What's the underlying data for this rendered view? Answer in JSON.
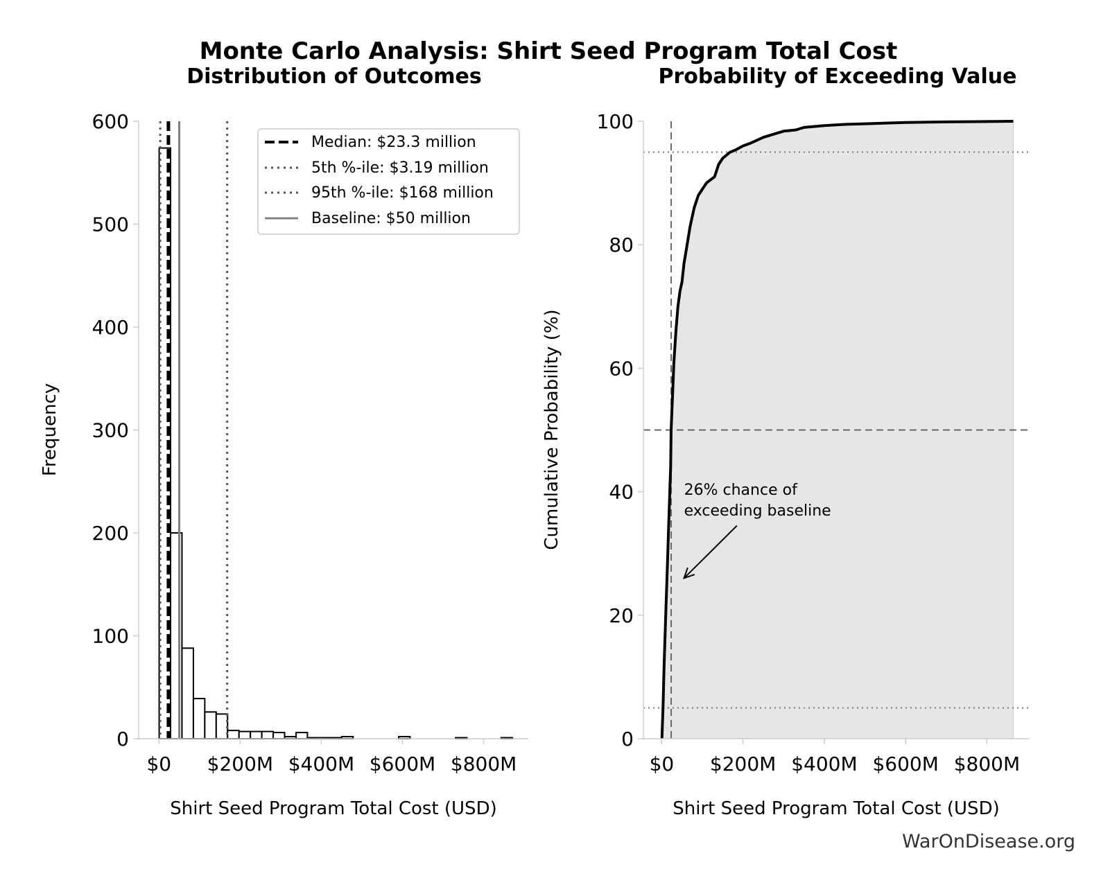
{
  "title": "Monte Carlo Analysis: Shirt Seed Program Total Cost",
  "watermark": "WarOnDisease.org",
  "chart_data": [
    {
      "type": "bar",
      "title": "Distribution of Outcomes",
      "xlabel": "Shirt Seed Program Total Cost (USD)",
      "ylabel": "Frequency",
      "xlim": [
        -50,
        910
      ],
      "ylim": [
        0,
        600
      ],
      "xticks": [
        {
          "value": 0,
          "label": "$0"
        },
        {
          "value": 200,
          "label": "$200M"
        },
        {
          "value": 400,
          "label": "$400M"
        },
        {
          "value": 600,
          "label": "$600M"
        },
        {
          "value": 800,
          "label": "$800M"
        }
      ],
      "yticks": [
        {
          "value": 0,
          "label": "0"
        },
        {
          "value": 100,
          "label": "100"
        },
        {
          "value": 200,
          "label": "200"
        },
        {
          "value": 300,
          "label": "300"
        },
        {
          "value": 400,
          "label": "400"
        },
        {
          "value": 500,
          "label": "500"
        },
        {
          "value": 600,
          "label": "600"
        }
      ],
      "bin_width": 28.1,
      "bins": [
        {
          "start": 0.5,
          "count": 574
        },
        {
          "start": 28.6,
          "count": 200
        },
        {
          "start": 56.7,
          "count": 88
        },
        {
          "start": 84.8,
          "count": 39
        },
        {
          "start": 112.9,
          "count": 26
        },
        {
          "start": 141.0,
          "count": 24
        },
        {
          "start": 169.1,
          "count": 8
        },
        {
          "start": 197.2,
          "count": 7
        },
        {
          "start": 225.3,
          "count": 7
        },
        {
          "start": 253.4,
          "count": 7
        },
        {
          "start": 281.5,
          "count": 6
        },
        {
          "start": 309.6,
          "count": 2
        },
        {
          "start": 337.7,
          "count": 6
        },
        {
          "start": 365.8,
          "count": 1
        },
        {
          "start": 393.9,
          "count": 1
        },
        {
          "start": 422.0,
          "count": 1
        },
        {
          "start": 450.1,
          "count": 2
        },
        {
          "start": 590.6,
          "count": 2
        },
        {
          "start": 730.6,
          "count": 1
        },
        {
          "start": 843.0,
          "count": 1
        }
      ],
      "reference_lines": [
        {
          "name": "median",
          "label": "Median: $23.3 million",
          "value": 23.3,
          "style": "dashed",
          "color": "#000000"
        },
        {
          "name": "p5",
          "label": "5th %-ile: $3.19 million",
          "value": 3.19,
          "style": "dotted",
          "color": "#555555"
        },
        {
          "name": "p95",
          "label": "95th %-ile: $168 million",
          "value": 168,
          "style": "dotted",
          "color": "#555555"
        },
        {
          "name": "baseline",
          "label": "Baseline: $50 million",
          "value": 50,
          "style": "solid",
          "color": "#808080"
        }
      ],
      "legend_placement": "upper-right",
      "grid": false
    },
    {
      "type": "line",
      "title": "Probability of Exceeding Value",
      "xlabel": "Shirt Seed Program Total Cost (USD)",
      "ylabel": "Cumulative Probability (%)",
      "xlim": [
        -45,
        905
      ],
      "ylim": [
        0,
        100
      ],
      "xticks": [
        {
          "value": 0,
          "label": "$0"
        },
        {
          "value": 200,
          "label": "$200M"
        },
        {
          "value": 400,
          "label": "$400M"
        },
        {
          "value": 600,
          "label": "$600M"
        },
        {
          "value": 800,
          "label": "$800M"
        }
      ],
      "yticks": [
        {
          "value": 0,
          "label": "0"
        },
        {
          "value": 20,
          "label": "20"
        },
        {
          "value": 40,
          "label": "40"
        },
        {
          "value": 60,
          "label": "60"
        },
        {
          "value": 80,
          "label": "80"
        },
        {
          "value": 100,
          "label": "100"
        }
      ],
      "x": [
        0.5,
        3.2,
        6,
        10,
        14,
        18,
        22,
        23.3,
        27,
        30,
        35,
        40,
        45,
        50,
        55,
        60,
        70,
        80,
        90,
        100,
        110,
        120,
        130,
        140,
        150,
        168,
        180,
        200,
        220,
        250,
        280,
        300,
        330,
        350,
        400,
        450,
        500,
        600,
        700,
        800,
        865
      ],
      "y": [
        0,
        5,
        12,
        20,
        28,
        36,
        44,
        50,
        56,
        61,
        66,
        70,
        72.5,
        74,
        77,
        79,
        83,
        86,
        88,
        89,
        90,
        90.5,
        91,
        93,
        94,
        95,
        95.3,
        96,
        96.5,
        97.4,
        98,
        98.4,
        98.6,
        99,
        99.3,
        99.5,
        99.6,
        99.8,
        99.9,
        99.95,
        100
      ],
      "reference_lines": [
        {
          "name": "median-vertical",
          "axis": "x",
          "value": 23.3,
          "style": "dashed",
          "color": "#666666"
        },
        {
          "name": "fifty-percent",
          "axis": "y",
          "value": 50,
          "style": "dashed",
          "color": "#666666"
        },
        {
          "name": "five-percent",
          "axis": "y",
          "value": 5,
          "style": "dotted",
          "color": "#777777"
        },
        {
          "name": "ninety-five-percent",
          "axis": "y",
          "value": 95,
          "style": "dotted",
          "color": "#777777"
        }
      ],
      "annotation": {
        "lines": [
          "26% chance of",
          "exceeding baseline"
        ],
        "text_x": 55,
        "text_y": 39.5,
        "arrow_from_x": 185,
        "arrow_from_y": 34.5,
        "arrow_to_x": 55,
        "arrow_to_y": 26
      },
      "fill_color": "#e6e6e6",
      "grid": false
    }
  ]
}
